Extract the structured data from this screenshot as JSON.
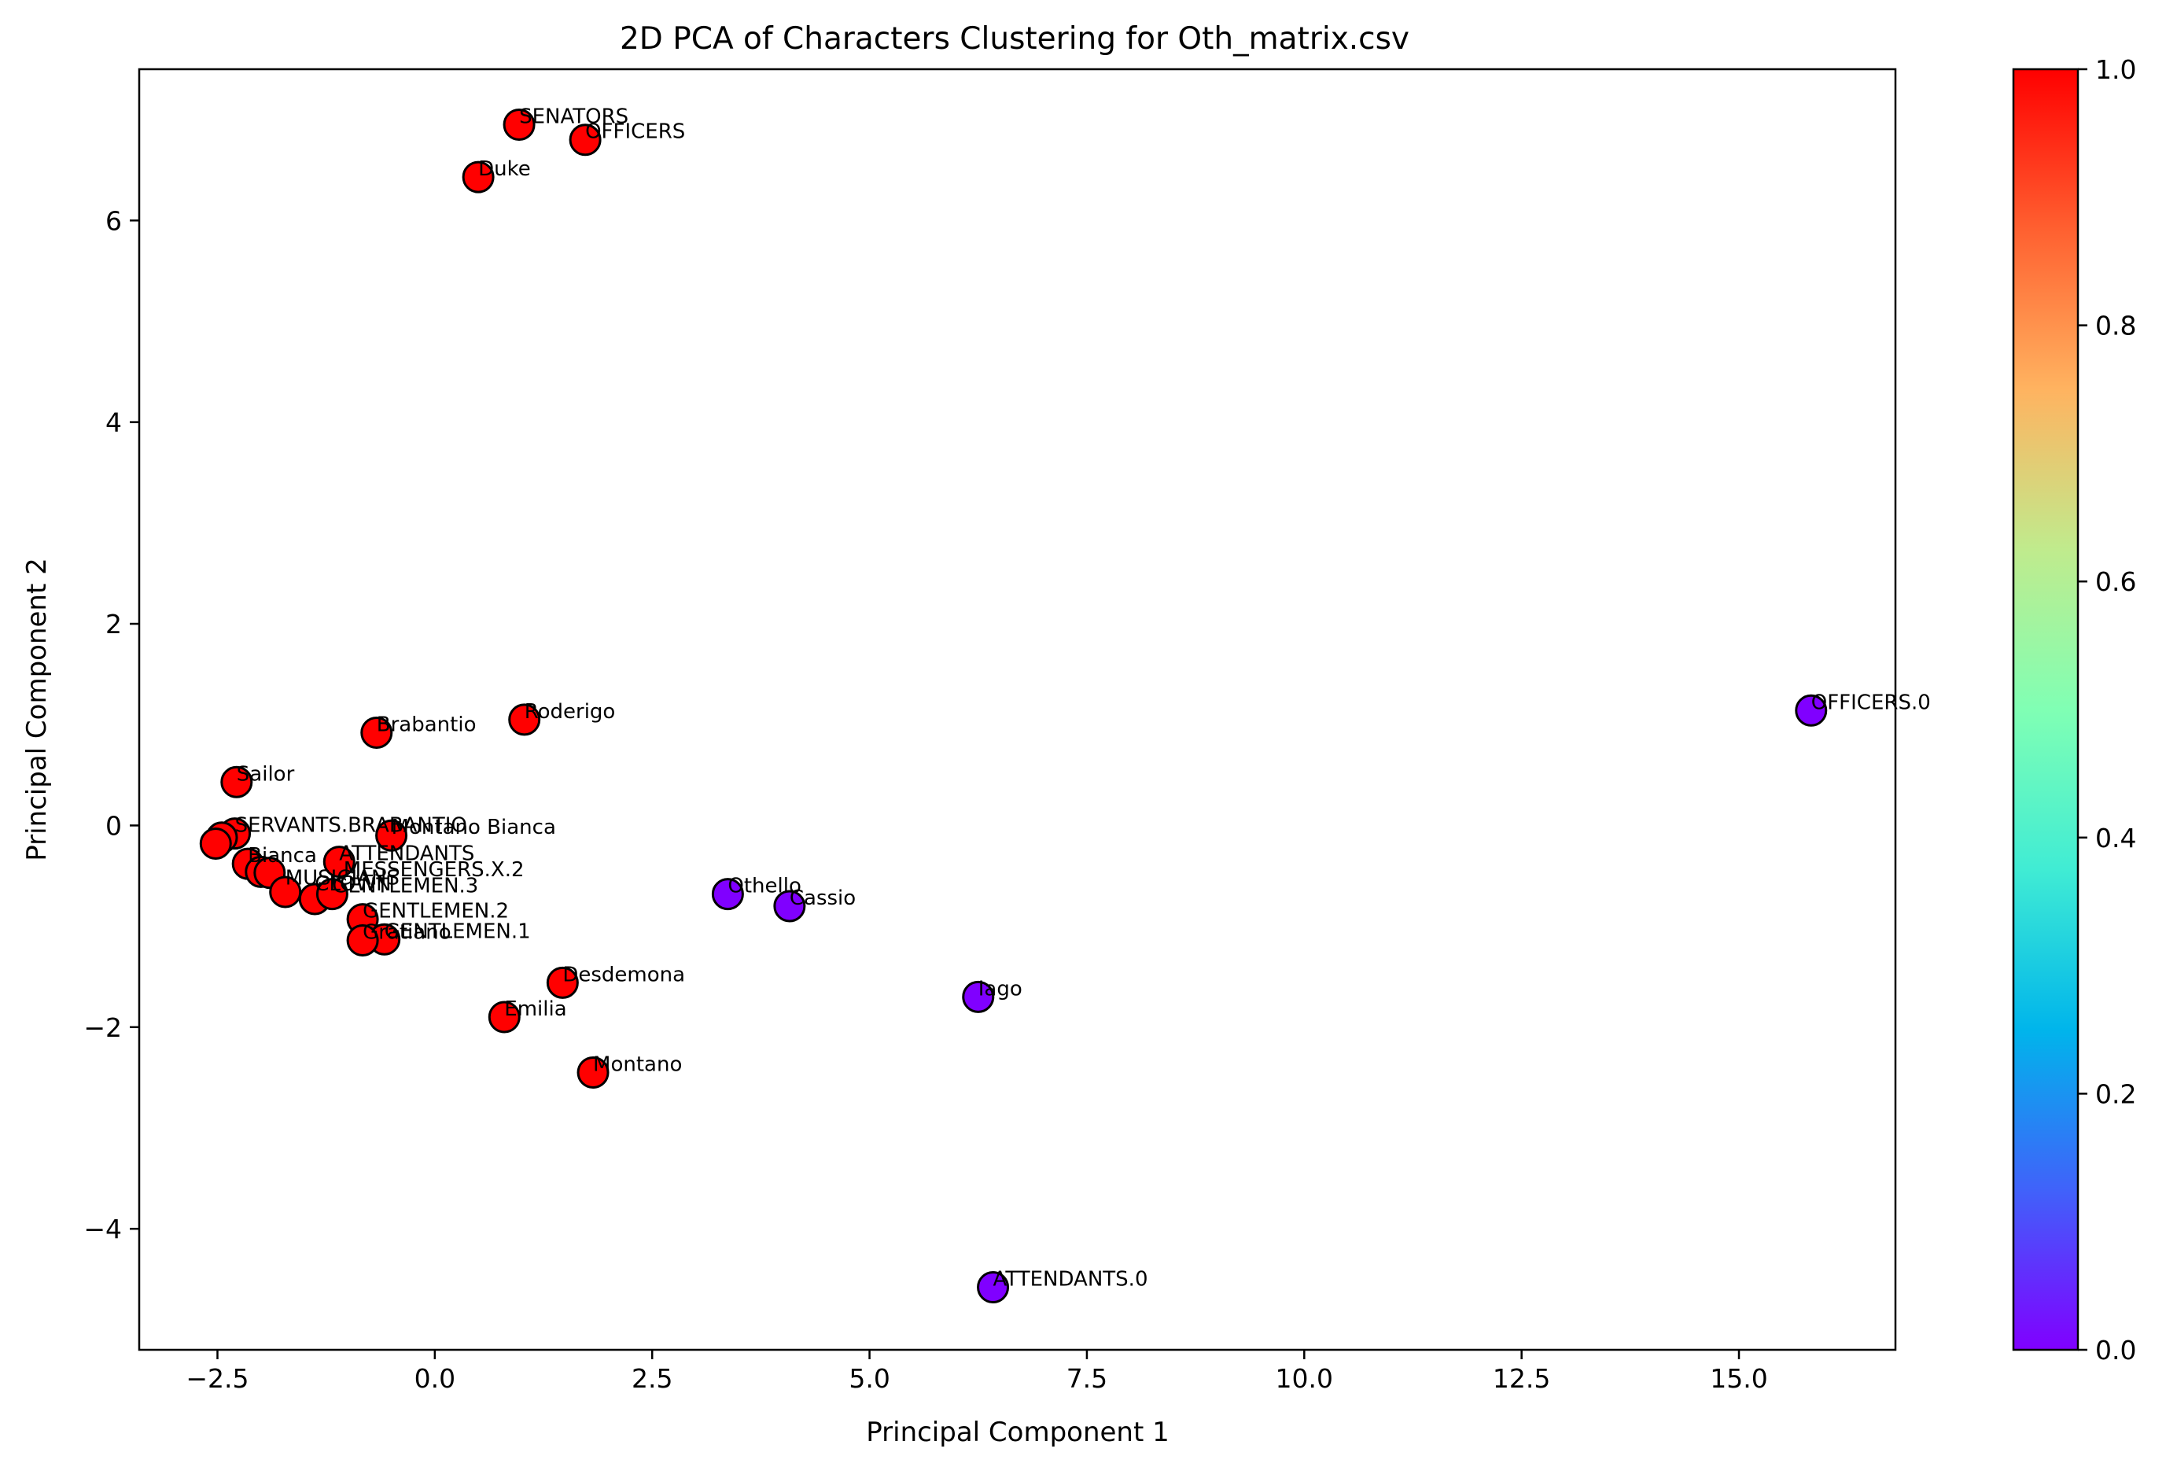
{
  "chart_data": {
    "type": "scatter",
    "title": "2D PCA of Characters Clustering for Oth_matrix.csv",
    "xlabel": "Principal Component 1",
    "ylabel": "Principal Component 2",
    "xlim": [
      -3.4,
      16.8
    ],
    "ylim": [
      -5.2,
      7.5
    ],
    "x_ticks": [
      -2.5,
      0.0,
      2.5,
      5.0,
      7.5,
      10.0,
      12.5,
      15.0
    ],
    "x_tick_labels": [
      "−2.5",
      "0.0",
      "2.5",
      "5.0",
      "7.5",
      "10.0",
      "12.5",
      "15.0"
    ],
    "y_ticks": [
      -4,
      -2,
      0,
      2,
      4,
      6
    ],
    "y_tick_labels": [
      "−4",
      "−2",
      "0",
      "2",
      "4",
      "6"
    ],
    "grid": false,
    "colormap": "rainbow",
    "colorbar": {
      "range": [
        0.0,
        1.0
      ],
      "ticks": [
        0.0,
        0.2,
        0.4,
        0.6,
        0.8,
        1.0
      ],
      "tick_labels": [
        "0.0",
        "0.2",
        "0.4",
        "0.6",
        "0.8",
        "1.0"
      ]
    },
    "cluster_colors": {
      "0": "#8000ff",
      "1": "#ff0000"
    },
    "points": [
      {
        "label": "SENATORS",
        "x": 0.97,
        "y": 6.95,
        "cluster": 1
      },
      {
        "label": "OFFICERS",
        "x": 1.73,
        "y": 6.8,
        "cluster": 1
      },
      {
        "label": "Duke",
        "x": 0.5,
        "y": 6.43,
        "cluster": 1
      },
      {
        "label": "Roderigo",
        "x": 1.03,
        "y": 1.05,
        "cluster": 1
      },
      {
        "label": "Brabantio",
        "x": -0.67,
        "y": 0.92,
        "cluster": 1
      },
      {
        "label": "Sailor",
        "x": -2.28,
        "y": 0.43,
        "cluster": 1
      },
      {
        "label": "SERVANTS.BRABANTIO",
        "x": -2.3,
        "y": -0.08,
        "cluster": 1
      },
      {
        "label": "Montano Bianca",
        "x": -0.5,
        "y": -0.1,
        "cluster": 1
      },
      {
        "label": "",
        "x": -2.45,
        "y": -0.12,
        "cluster": 1
      },
      {
        "label": "",
        "x": -2.52,
        "y": -0.18,
        "cluster": 1
      },
      {
        "label": "Bianca",
        "x": -2.15,
        "y": -0.38,
        "cluster": 1
      },
      {
        "label": "ATTENDANTS",
        "x": -1.1,
        "y": -0.36,
        "cluster": 1
      },
      {
        "label": "",
        "x": -2.0,
        "y": -0.46,
        "cluster": 1
      },
      {
        "label": "",
        "x": -1.9,
        "y": -0.47,
        "cluster": 1
      },
      {
        "label": "",
        "x": -1.72,
        "y": -0.66,
        "cluster": 1
      },
      {
        "label": "",
        "x": -1.38,
        "y": -0.73,
        "cluster": 1
      },
      {
        "label": "GENTLEMEN.3",
        "x": -1.18,
        "y": -0.68,
        "cluster": 1
      },
      {
        "label": "GENTLEMEN.2",
        "x": -0.83,
        "y": -0.93,
        "cluster": 1
      },
      {
        "label": "GENTLEMEN.1",
        "x": -0.58,
        "y": -1.13,
        "cluster": 1
      },
      {
        "label": "Gratiano",
        "x": -0.83,
        "y": -1.14,
        "cluster": 1
      },
      {
        "label": "Desdemona",
        "x": 1.47,
        "y": -1.56,
        "cluster": 1
      },
      {
        "label": "Emilia",
        "x": 0.8,
        "y": -1.9,
        "cluster": 1
      },
      {
        "label": "Montano",
        "x": 1.82,
        "y": -2.45,
        "cluster": 1
      },
      {
        "label": "Othello",
        "x": 3.37,
        "y": -0.68,
        "cluster": 0
      },
      {
        "label": "Cassio",
        "x": 4.08,
        "y": -0.8,
        "cluster": 0
      },
      {
        "label": "Iago",
        "x": 6.25,
        "y": -1.7,
        "cluster": 0
      },
      {
        "label": "OFFICERS.0",
        "x": 15.83,
        "y": 1.14,
        "cluster": 0
      },
      {
        "label": "ATTENDANTS.0",
        "x": 6.42,
        "y": -4.58,
        "cluster": 0
      }
    ],
    "overlapping_label_texts": [
      "MESSENGERS.X.2",
      "MUSICIANS",
      "CLOWN"
    ]
  }
}
